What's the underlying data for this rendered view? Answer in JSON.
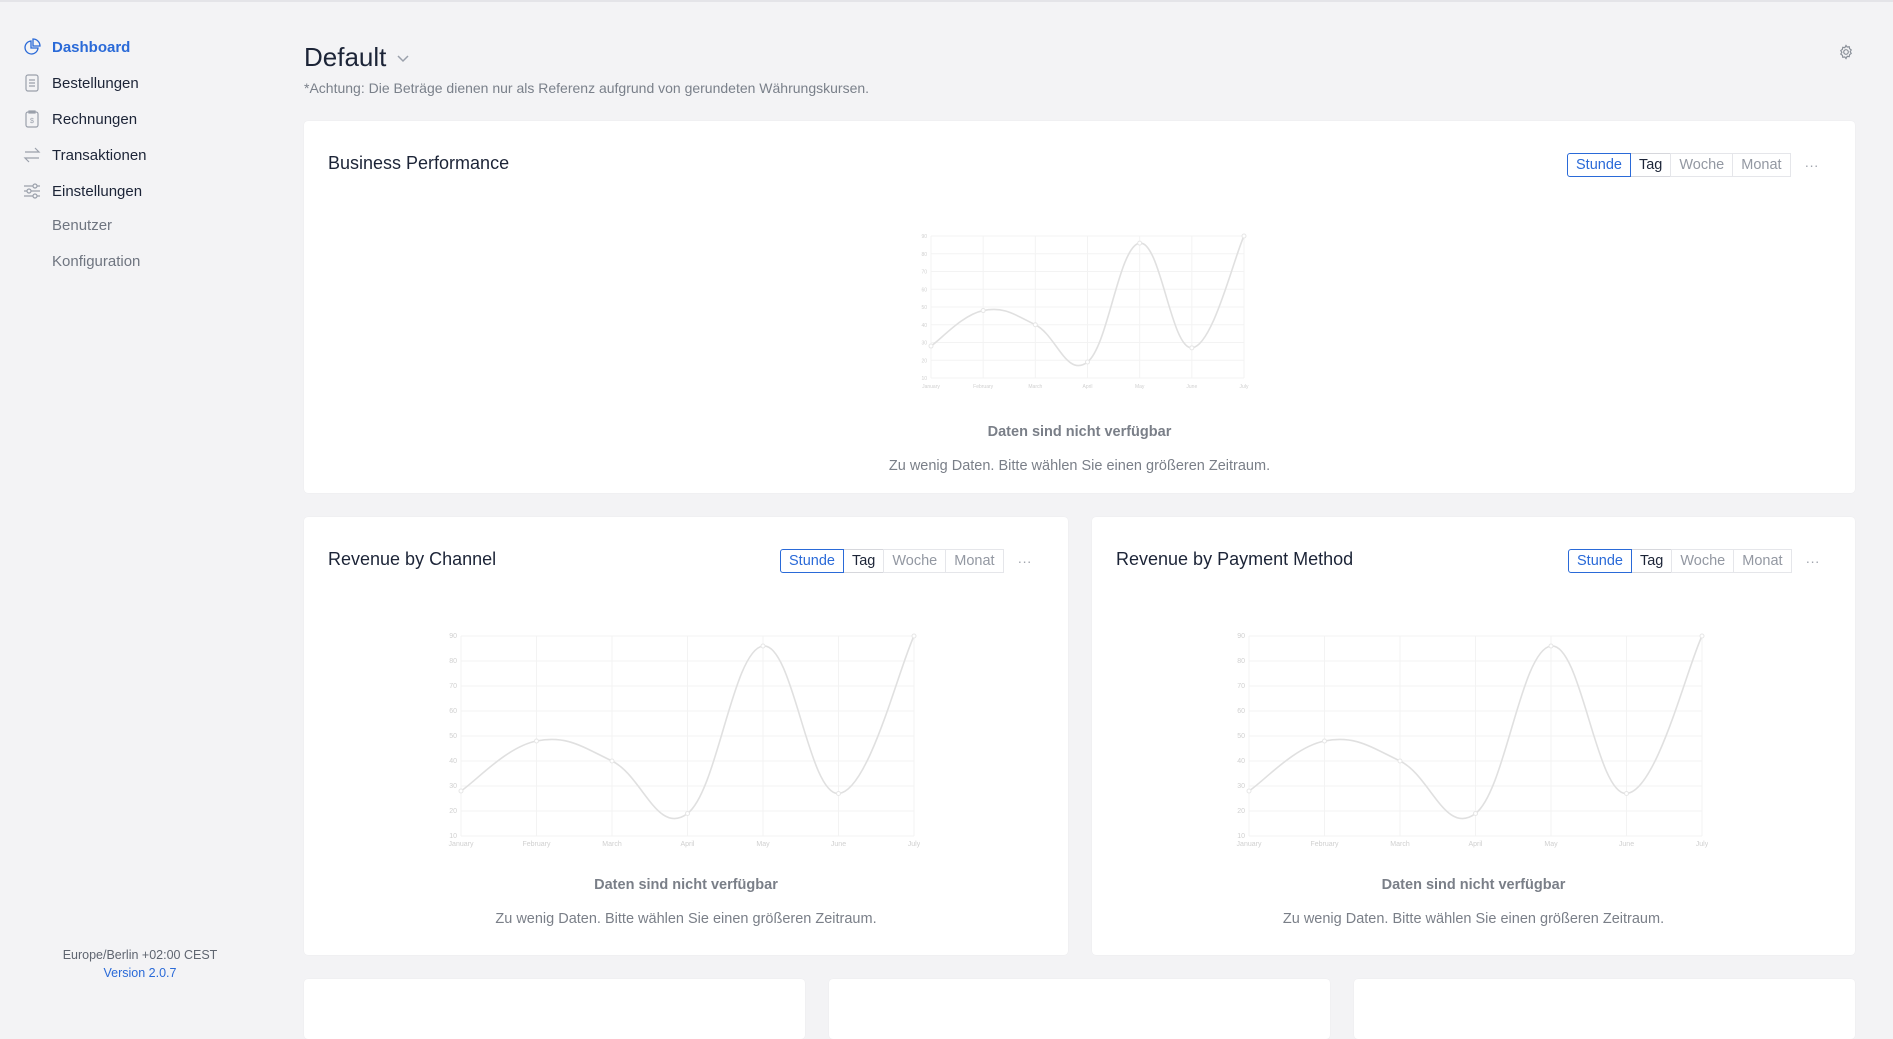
{
  "sidebar": {
    "items": [
      {
        "label": "Dashboard",
        "icon": "pie-chart-icon",
        "active": true
      },
      {
        "label": "Bestellungen",
        "icon": "document-icon"
      },
      {
        "label": "Rechnungen",
        "icon": "invoice-icon"
      },
      {
        "label": "Transaktionen",
        "icon": "arrows-swap-icon"
      },
      {
        "label": "Einstellungen",
        "icon": "sliders-icon"
      },
      {
        "label": "Benutzer",
        "sub": true
      },
      {
        "label": "Konfiguration",
        "sub": true
      }
    ],
    "timezone": "Europe/Berlin +02:00 CEST",
    "version": "Version 2.0.7"
  },
  "header": {
    "title": "Default",
    "note": "*Achtung: Die Beträge dienen nur als Referenz aufgrund von gerundeten Währungskursen."
  },
  "periods": [
    "Stunde",
    "Tag",
    "Woche",
    "Monat"
  ],
  "more_label": "···",
  "cards": [
    {
      "title": "Business Performance",
      "empty_title": "Daten sind nicht verfügbar",
      "empty_sub": "Zu wenig Daten. Bitte wählen Sie einen größeren Zeitraum."
    },
    {
      "title": "Revenue by Channel",
      "empty_title": "Daten sind nicht verfügbar",
      "empty_sub": "Zu wenig Daten. Bitte wählen Sie einen größeren Zeitraum."
    },
    {
      "title": "Revenue by Payment Method",
      "empty_title": "Daten sind nicht verfügbar",
      "empty_sub": "Zu wenig Daten. Bitte wählen Sie einen größeren Zeitraum."
    }
  ],
  "colors": {
    "accent": "#2a6ad8",
    "placeholder_line": "#e0e0e0"
  },
  "chart_data": {
    "type": "line",
    "categories": [
      "January",
      "February",
      "March",
      "April",
      "May",
      "June",
      "July"
    ],
    "values": [
      28,
      48,
      40,
      19,
      86,
      27,
      90
    ],
    "ylim": [
      10,
      90
    ],
    "yticks": [
      10,
      20,
      30,
      40,
      50,
      60,
      70,
      80,
      90
    ],
    "grid": true
  }
}
